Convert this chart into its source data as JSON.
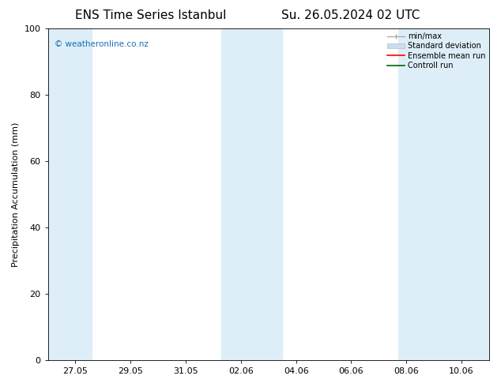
{
  "title_left": "ENS Time Series Istanbul",
  "title_right": "Su. 26.05.2024 02 UTC",
  "ylabel": "Precipitation Accumulation (mm)",
  "ylim": [
    0,
    100
  ],
  "yticks": [
    0,
    20,
    40,
    60,
    80,
    100
  ],
  "x_tick_labels": [
    "27.05",
    "29.05",
    "31.05",
    "02.06",
    "04.06",
    "06.06",
    "08.06",
    "10.06"
  ],
  "background_color": "#ffffff",
  "plot_bg_color": "#ffffff",
  "shaded_band_color": "#ddeef8",
  "watermark_text": "© weatheronline.co.nz",
  "watermark_color": "#1a6eb5",
  "legend_entries": [
    {
      "label": "min/max",
      "color": "#aaaaaa",
      "style": "errorbar"
    },
    {
      "label": "Standard deviation",
      "color": "#c8dff0",
      "style": "filled"
    },
    {
      "label": "Ensemble mean run",
      "color": "#ff0000",
      "style": "line"
    },
    {
      "label": "Controll run",
      "color": "#006600",
      "style": "line"
    }
  ],
  "title_fontsize": 11,
  "label_fontsize": 8,
  "tick_fontsize": 8,
  "watermark_fontsize": 7.5,
  "legend_fontsize": 7
}
